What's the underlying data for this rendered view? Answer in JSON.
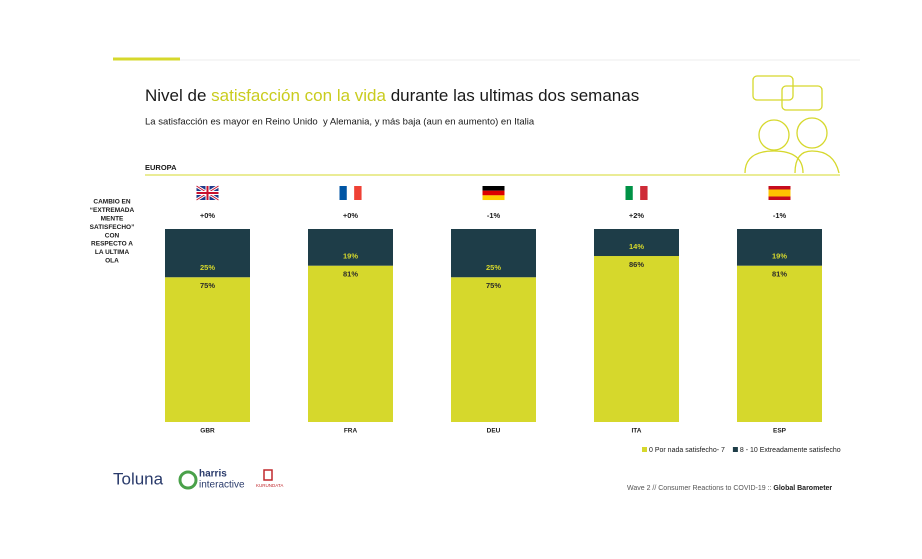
{
  "chart_data": {
    "type": "stacked-bar",
    "title": [
      "Nivel de ",
      "satisfacción con la vida",
      " durante las ultimas dos semanas"
    ],
    "subtitle": "La satisfacción es mayor en Reino Unido  y Alemania, y más baja (aun en aumento) en Italia",
    "region": "EUROPA",
    "change_label": [
      "CAMBIO EN",
      "“EXTREMADA",
      "MENTE",
      "SATISFECHO”",
      "CON",
      "RESPECTO A",
      "LA ULTIMA",
      "OLA"
    ],
    "changes": [
      "+0%",
      "+0%",
      "-1%",
      "+2%",
      "-1%"
    ],
    "categories": [
      "GBR",
      "FRA",
      "DEU",
      "ITA",
      "ESP"
    ],
    "ylim": [
      0,
      100
    ],
    "legend": "bottom-right",
    "series": [
      {
        "name": "0 Por nada satisfecho- 7",
        "color": "#d6d82c",
        "values": [
          75,
          81,
          75,
          86,
          81
        ],
        "value_labels": [
          "75%",
          "81%",
          "75%",
          "86%",
          "81%"
        ],
        "label_color": "#2a2a2a"
      },
      {
        "name": "8 - 10 Extreadamente satisfecho",
        "color": "#1e3d48",
        "values": [
          25,
          19,
          25,
          14,
          19
        ],
        "value_labels": [
          "25%",
          "19%",
          "25%",
          "14%",
          "19%"
        ],
        "label_color": "#d6d82c"
      }
    ]
  },
  "footer": {
    "logos": [
      "Toluna",
      "harris",
      "interactive",
      "KURUNDATA"
    ],
    "note": [
      "Wave 2 // Consumer Reactions to COVID-19 :: ",
      "Global Barometer"
    ]
  }
}
